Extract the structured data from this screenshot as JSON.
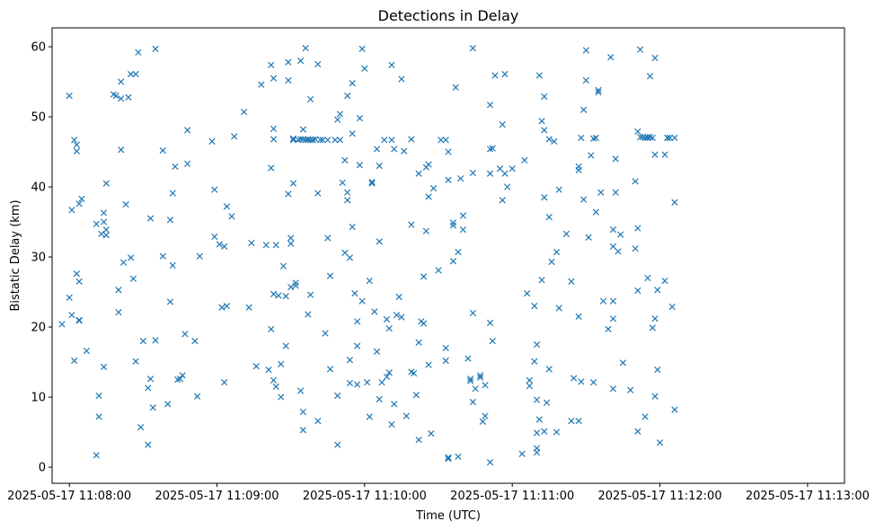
{
  "chart_data": {
    "type": "scatter",
    "title": "Detections in Delay",
    "xlabel": "Time (UTC)",
    "ylabel": "Bistatic Delay (km)",
    "marker": "x",
    "color": "#1f77b4",
    "grid": false,
    "x_ticks": [
      "2025-05-17 11:08:00",
      "2025-05-17 11:09:00",
      "2025-05-17 11:10:00",
      "2025-05-17 11:11:00",
      "2025-05-17 11:12:00",
      "2025-05-17 11:13:00"
    ],
    "y_ticks": [
      "0",
      "10",
      "20",
      "30",
      "40",
      "50",
      "60"
    ],
    "xlim": [
      "2025-05-17 11:07:53",
      "2025-05-17 11:13:15"
    ],
    "ylim": [
      -2.3,
      62.7
    ],
    "points": [
      [
        "11:07:57",
        20.4
      ],
      [
        "11:08:00",
        53.0
      ],
      [
        "11:08:01",
        36.7
      ],
      [
        "11:08:00",
        24.2
      ],
      [
        "11:08:01",
        21.7
      ],
      [
        "11:08:02",
        15.2
      ],
      [
        "11:08:02",
        46.7
      ],
      [
        "11:08:03",
        45.1
      ],
      [
        "11:08:03",
        46.0
      ],
      [
        "11:08:03",
        27.6
      ],
      [
        "11:08:04",
        26.5
      ],
      [
        "11:08:04",
        20.9
      ],
      [
        "11:08:04",
        21.0
      ],
      [
        "11:08:04",
        37.6
      ],
      [
        "11:08:05",
        38.3
      ],
      [
        "11:08:07",
        16.6
      ],
      [
        "11:08:11",
        34.7
      ],
      [
        "11:08:11",
        1.7
      ],
      [
        "11:08:12",
        7.2
      ],
      [
        "11:08:12",
        10.2
      ],
      [
        "11:08:13",
        33.3
      ],
      [
        "11:08:14",
        36.3
      ],
      [
        "11:08:14",
        35.0
      ],
      [
        "11:08:15",
        33.9
      ],
      [
        "11:08:15",
        33.1
      ],
      [
        "11:08:14",
        14.3
      ],
      [
        "11:08:15",
        40.5
      ],
      [
        "11:08:18",
        53.2
      ],
      [
        "11:08:19",
        53.0
      ],
      [
        "11:08:20",
        22.1
      ],
      [
        "11:08:20",
        25.3
      ],
      [
        "11:08:21",
        52.6
      ],
      [
        "11:08:21",
        55.0
      ],
      [
        "11:08:21",
        45.3
      ],
      [
        "11:08:22",
        29.2
      ],
      [
        "11:08:23",
        37.5
      ],
      [
        "11:08:24",
        52.8
      ],
      [
        "11:08:25",
        56.1
      ],
      [
        "11:08:25",
        29.9
      ],
      [
        "11:08:26",
        26.9
      ],
      [
        "11:08:27",
        56.1
      ],
      [
        "11:08:27",
        15.1
      ],
      [
        "11:08:28",
        59.2
      ],
      [
        "11:08:29",
        5.7
      ],
      [
        "11:08:30",
        18.0
      ],
      [
        "11:08:32",
        11.3
      ],
      [
        "11:08:32",
        3.2
      ],
      [
        "11:08:33",
        12.6
      ],
      [
        "11:08:33",
        35.5
      ],
      [
        "11:08:34",
        8.5
      ],
      [
        "11:08:35",
        59.7
      ],
      [
        "11:08:35",
        18.1
      ],
      [
        "11:08:38",
        45.2
      ],
      [
        "11:08:38",
        30.1
      ],
      [
        "11:08:40",
        9.0
      ],
      [
        "11:08:41",
        23.6
      ],
      [
        "11:08:41",
        35.3
      ],
      [
        "11:08:42",
        28.8
      ],
      [
        "11:08:42",
        39.1
      ],
      [
        "11:08:43",
        42.9
      ],
      [
        "11:08:44",
        12.5
      ],
      [
        "11:08:45",
        12.6
      ],
      [
        "11:08:46",
        13.1
      ],
      [
        "11:08:47",
        19.0
      ],
      [
        "11:08:48",
        43.3
      ],
      [
        "11:08:48",
        48.1
      ],
      [
        "11:08:51",
        18.0
      ],
      [
        "11:08:52",
        10.1
      ],
      [
        "11:08:53",
        30.1
      ],
      [
        "11:08:58",
        46.5
      ],
      [
        "11:08:59",
        39.6
      ],
      [
        "11:08:59",
        32.9
      ],
      [
        "11:09:01",
        31.8
      ],
      [
        "11:09:02",
        22.8
      ],
      [
        "11:09:03",
        31.5
      ],
      [
        "11:09:03",
        12.1
      ],
      [
        "11:09:04",
        23.0
      ],
      [
        "11:09:04",
        37.2
      ],
      [
        "11:09:06",
        35.8
      ],
      [
        "11:09:07",
        47.2
      ],
      [
        "11:09:11",
        50.7
      ],
      [
        "11:09:13",
        22.8
      ],
      [
        "11:09:14",
        32.0
      ],
      [
        "11:09:16",
        14.4
      ],
      [
        "11:09:18",
        54.6
      ],
      [
        "11:09:20",
        31.7
      ],
      [
        "11:09:21",
        13.9
      ],
      [
        "11:09:22",
        57.4
      ],
      [
        "11:09:22",
        42.7
      ],
      [
        "11:09:22",
        19.7
      ],
      [
        "11:09:23",
        48.3
      ],
      [
        "11:09:23",
        55.5
      ],
      [
        "11:09:23",
        46.8
      ],
      [
        "11:09:23",
        24.7
      ],
      [
        "11:09:23",
        12.4
      ],
      [
        "11:09:24",
        11.5
      ],
      [
        "11:09:24",
        31.7
      ],
      [
        "11:09:25",
        24.5
      ],
      [
        "11:09:26",
        14.7
      ],
      [
        "11:09:26",
        10.0
      ],
      [
        "11:09:27",
        28.7
      ],
      [
        "11:09:28",
        24.4
      ],
      [
        "11:09:28",
        17.3
      ],
      [
        "11:09:29",
        57.8
      ],
      [
        "11:09:29",
        55.2
      ],
      [
        "11:09:29",
        39.0
      ],
      [
        "11:09:30",
        31.9
      ],
      [
        "11:09:30",
        32.7
      ],
      [
        "11:09:30",
        25.7
      ],
      [
        "11:09:31",
        40.5
      ],
      [
        "11:09:31",
        46.9
      ],
      [
        "11:09:31",
        46.7
      ],
      [
        "11:09:32",
        26.3
      ],
      [
        "11:09:32",
        25.9
      ],
      [
        "11:09:33",
        46.7
      ],
      [
        "11:09:34",
        58.0
      ],
      [
        "11:09:34",
        10.9
      ],
      [
        "11:09:34",
        46.8
      ],
      [
        "11:09:35",
        46.8
      ],
      [
        "11:09:35",
        48.2
      ],
      [
        "11:09:35",
        7.9
      ],
      [
        "11:09:35",
        5.3
      ],
      [
        "11:09:36",
        59.8
      ],
      [
        "11:09:36",
        46.7
      ],
      [
        "11:09:37",
        46.7
      ],
      [
        "11:09:37",
        46.8
      ],
      [
        "11:09:37",
        21.8
      ],
      [
        "11:09:38",
        52.5
      ],
      [
        "11:09:38",
        46.7
      ],
      [
        "11:09:38",
        24.6
      ],
      [
        "11:09:39",
        46.7
      ],
      [
        "11:09:39",
        46.7
      ],
      [
        "11:09:40",
        46.8
      ],
      [
        "11:09:41",
        57.5
      ],
      [
        "11:09:41",
        39.1
      ],
      [
        "11:09:41",
        6.6
      ],
      [
        "11:09:42",
        46.7
      ],
      [
        "11:09:43",
        46.7
      ],
      [
        "11:09:44",
        19.1
      ],
      [
        "11:09:45",
        46.7
      ],
      [
        "11:09:45",
        32.7
      ],
      [
        "11:09:46",
        27.3
      ],
      [
        "11:09:46",
        14.0
      ],
      [
        "11:09:48",
        46.7
      ],
      [
        "11:09:49",
        10.2
      ],
      [
        "11:09:49",
        3.2
      ],
      [
        "11:09:49",
        49.6
      ],
      [
        "11:09:50",
        50.4
      ],
      [
        "11:09:50",
        46.7
      ],
      [
        "11:09:51",
        40.6
      ],
      [
        "11:09:52",
        43.8
      ],
      [
        "11:09:52",
        30.6
      ],
      [
        "11:09:53",
        39.2
      ],
      [
        "11:09:53",
        38.1
      ],
      [
        "11:09:53",
        53.0
      ],
      [
        "11:09:54",
        29.9
      ],
      [
        "11:09:54",
        15.3
      ],
      [
        "11:09:54",
        12.0
      ],
      [
        "11:09:55",
        47.6
      ],
      [
        "11:09:55",
        34.3
      ],
      [
        "11:09:55",
        54.8
      ],
      [
        "11:09:56",
        24.8
      ],
      [
        "11:09:57",
        20.8
      ],
      [
        "11:09:57",
        17.3
      ],
      [
        "11:09:57",
        11.8
      ],
      [
        "11:09:58",
        43.1
      ],
      [
        "11:09:58",
        49.8
      ],
      [
        "11:09:59",
        23.7
      ],
      [
        "11:09:59",
        59.7
      ],
      [
        "11:10:00",
        56.9
      ],
      [
        "11:10:01",
        12.1
      ],
      [
        "11:10:02",
        7.2
      ],
      [
        "11:10:02",
        26.6
      ],
      [
        "11:10:03",
        40.5
      ],
      [
        "11:10:03",
        40.7
      ],
      [
        "11:10:04",
        22.2
      ],
      [
        "11:10:05",
        45.4
      ],
      [
        "11:10:05",
        16.5
      ],
      [
        "11:10:06",
        9.7
      ],
      [
        "11:10:06",
        43.0
      ],
      [
        "11:10:06",
        32.2
      ],
      [
        "11:10:07",
        12.1
      ],
      [
        "11:10:08",
        46.7
      ],
      [
        "11:10:09",
        21.1
      ],
      [
        "11:10:09",
        12.9
      ],
      [
        "11:10:10",
        19.8
      ],
      [
        "11:10:10",
        13.5
      ],
      [
        "11:10:11",
        57.4
      ],
      [
        "11:10:11",
        46.7
      ],
      [
        "11:10:11",
        6.1
      ],
      [
        "11:10:12",
        9.0
      ],
      [
        "11:10:12",
        45.4
      ],
      [
        "11:10:13",
        21.7
      ],
      [
        "11:10:14",
        24.3
      ],
      [
        "11:10:15",
        55.4
      ],
      [
        "11:10:15",
        21.4
      ],
      [
        "11:10:16",
        45.1
      ],
      [
        "11:10:17",
        7.3
      ],
      [
        "11:10:19",
        46.8
      ],
      [
        "11:10:19",
        34.6
      ],
      [
        "11:10:19",
        13.6
      ],
      [
        "11:10:20",
        13.4
      ],
      [
        "11:10:21",
        10.3
      ],
      [
        "11:10:22",
        41.9
      ],
      [
        "11:10:22",
        17.8
      ],
      [
        "11:10:22",
        3.9
      ],
      [
        "11:10:23",
        20.8
      ],
      [
        "11:10:24",
        27.2
      ],
      [
        "11:10:24",
        20.5
      ],
      [
        "11:10:25",
        33.7
      ],
      [
        "11:10:25",
        42.8
      ],
      [
        "11:10:26",
        43.2
      ],
      [
        "11:10:26",
        38.6
      ],
      [
        "11:10:26",
        14.6
      ],
      [
        "11:10:27",
        4.8
      ],
      [
        "11:10:28",
        39.8
      ],
      [
        "11:10:30",
        28.1
      ],
      [
        "11:10:31",
        46.7
      ],
      [
        "11:10:33",
        46.7
      ],
      [
        "11:10:33",
        17.0
      ],
      [
        "11:10:33",
        15.2
      ],
      [
        "11:10:34",
        1.4
      ],
      [
        "11:10:34",
        1.2
      ],
      [
        "11:10:34",
        45.0
      ],
      [
        "11:10:34",
        41.0
      ],
      [
        "11:10:36",
        34.9
      ],
      [
        "11:10:36",
        34.5
      ],
      [
        "11:10:36",
        29.4
      ],
      [
        "11:10:37",
        54.2
      ],
      [
        "11:10:38",
        30.7
      ],
      [
        "11:10:38",
        1.5
      ],
      [
        "11:10:39",
        41.2
      ],
      [
        "11:10:40",
        35.9
      ],
      [
        "11:10:40",
        33.9
      ],
      [
        "11:10:42",
        15.5
      ],
      [
        "11:10:43",
        12.3
      ],
      [
        "11:10:43",
        12.6
      ],
      [
        "11:10:44",
        42.0
      ],
      [
        "11:10:44",
        22.0
      ],
      [
        "11:10:44",
        9.3
      ],
      [
        "11:10:44",
        59.8
      ],
      [
        "11:10:45",
        11.2
      ],
      [
        "11:10:47",
        13.1
      ],
      [
        "11:10:47",
        12.8
      ],
      [
        "11:10:48",
        6.5
      ],
      [
        "11:10:49",
        7.3
      ],
      [
        "11:10:49",
        11.7
      ],
      [
        "11:10:51",
        51.7
      ],
      [
        "11:10:51",
        45.4
      ],
      [
        "11:10:51",
        41.9
      ],
      [
        "11:10:51",
        20.6
      ],
      [
        "11:10:51",
        0.7
      ],
      [
        "11:10:52",
        45.5
      ],
      [
        "11:10:52",
        18.0
      ],
      [
        "11:10:53",
        55.9
      ],
      [
        "11:10:55",
        42.6
      ],
      [
        "11:10:56",
        38.1
      ],
      [
        "11:10:56",
        48.9
      ],
      [
        "11:10:57",
        41.9
      ],
      [
        "11:10:57",
        56.1
      ],
      [
        "11:10:58",
        40.0
      ],
      [
        "11:11:00",
        42.6
      ],
      [
        "11:11:04",
        1.9
      ],
      [
        "11:11:05",
        43.8
      ],
      [
        "11:11:06",
        24.8
      ],
      [
        "11:11:07",
        12.4
      ],
      [
        "11:11:07",
        11.6
      ],
      [
        "11:11:09",
        23.0
      ],
      [
        "11:11:09",
        15.1
      ],
      [
        "11:11:10",
        17.5
      ],
      [
        "11:11:10",
        9.6
      ],
      [
        "11:11:10",
        2.7
      ],
      [
        "11:11:10",
        2.1
      ],
      [
        "11:11:10",
        4.9
      ],
      [
        "11:11:11",
        6.8
      ],
      [
        "11:11:11",
        55.9
      ],
      [
        "11:11:12",
        26.7
      ],
      [
        "11:11:12",
        49.4
      ],
      [
        "11:11:13",
        48.1
      ],
      [
        "11:11:13",
        52.9
      ],
      [
        "11:11:13",
        38.5
      ],
      [
        "11:11:13",
        5.1
      ],
      [
        "11:11:14",
        9.2
      ],
      [
        "11:11:15",
        46.8
      ],
      [
        "11:11:15",
        14.0
      ],
      [
        "11:11:15",
        35.7
      ],
      [
        "11:11:16",
        29.3
      ],
      [
        "11:11:17",
        46.5
      ],
      [
        "11:11:18",
        30.7
      ],
      [
        "11:11:18",
        5.0
      ],
      [
        "11:11:19",
        39.6
      ],
      [
        "11:11:19",
        22.7
      ],
      [
        "11:11:22",
        33.3
      ],
      [
        "11:11:24",
        6.6
      ],
      [
        "11:11:24",
        26.5
      ],
      [
        "11:11:25",
        12.7
      ],
      [
        "11:11:27",
        21.5
      ],
      [
        "11:11:27",
        6.6
      ],
      [
        "11:11:27",
        42.9
      ],
      [
        "11:11:27",
        42.4
      ],
      [
        "11:11:28",
        47.0
      ],
      [
        "11:11:28",
        12.2
      ],
      [
        "11:11:29",
        51.0
      ],
      [
        "11:11:29",
        38.2
      ],
      [
        "11:11:30",
        55.2
      ],
      [
        "11:11:30",
        59.5
      ],
      [
        "11:11:31",
        32.8
      ],
      [
        "11:11:32",
        44.5
      ],
      [
        "11:11:33",
        12.1
      ],
      [
        "11:11:33",
        46.9
      ],
      [
        "11:11:34",
        47.0
      ],
      [
        "11:11:34",
        36.4
      ],
      [
        "11:11:35",
        53.5
      ],
      [
        "11:11:35",
        53.8
      ],
      [
        "11:11:36",
        39.2
      ],
      [
        "11:11:37",
        23.7
      ],
      [
        "11:11:39",
        19.7
      ],
      [
        "11:11:40",
        58.5
      ],
      [
        "11:11:41",
        23.7
      ],
      [
        "11:11:41",
        33.9
      ],
      [
        "11:11:41",
        31.5
      ],
      [
        "11:11:41",
        21.2
      ],
      [
        "11:11:41",
        11.2
      ],
      [
        "11:11:42",
        44.0
      ],
      [
        "11:11:42",
        39.2
      ],
      [
        "11:11:43",
        30.8
      ],
      [
        "11:11:44",
        33.2
      ],
      [
        "11:11:45",
        14.9
      ],
      [
        "11:11:48",
        11.0
      ],
      [
        "11:11:50",
        40.8
      ],
      [
        "11:11:50",
        31.2
      ],
      [
        "11:11:51",
        5.1
      ],
      [
        "11:11:51",
        47.9
      ],
      [
        "11:11:51",
        34.1
      ],
      [
        "11:11:51",
        25.2
      ],
      [
        "11:11:52",
        59.6
      ],
      [
        "11:11:52",
        47.1
      ],
      [
        "11:11:53",
        47.1
      ],
      [
        "11:11:54",
        47.0
      ],
      [
        "11:11:54",
        7.2
      ],
      [
        "11:11:55",
        47.0
      ],
      [
        "11:11:55",
        47.1
      ],
      [
        "11:11:55",
        27.0
      ],
      [
        "11:11:56",
        55.8
      ],
      [
        "11:11:56",
        47.1
      ],
      [
        "11:11:57",
        47.0
      ],
      [
        "11:11:57",
        19.9
      ],
      [
        "11:11:58",
        21.2
      ],
      [
        "11:11:58",
        58.4
      ],
      [
        "11:11:58",
        44.6
      ],
      [
        "11:11:58",
        10.1
      ],
      [
        "11:11:59",
        13.9
      ],
      [
        "11:11:59",
        25.3
      ],
      [
        "11:12:00",
        3.5
      ],
      [
        "11:12:02",
        26.6
      ],
      [
        "11:12:02",
        44.6
      ],
      [
        "11:12:03",
        47.0
      ],
      [
        "11:12:03",
        47.0
      ],
      [
        "11:12:04",
        47.0
      ],
      [
        "11:12:04",
        47.0
      ],
      [
        "11:12:05",
        22.9
      ],
      [
        "11:12:06",
        47.0
      ],
      [
        "11:12:06",
        37.8
      ],
      [
        "11:12:06",
        8.2
      ]
    ]
  }
}
